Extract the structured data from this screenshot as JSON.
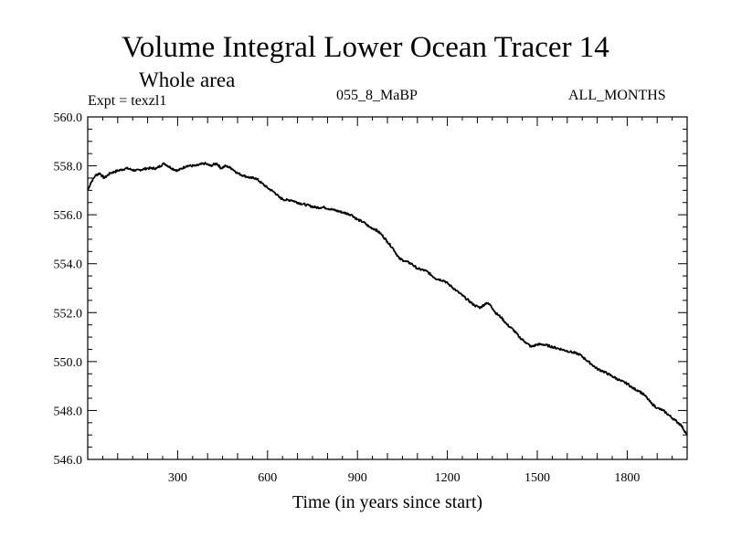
{
  "header": {
    "expt_label": "Expt = texzl1",
    "run_label": "055_8_MaBP",
    "months_label": "ALL_MONTHS"
  },
  "chart_data": {
    "type": "line",
    "title": "Volume Integral Lower Ocean Tracer 14",
    "subtitle": "Whole area",
    "xlabel": "Time (in years since start)",
    "ylabel": "",
    "xlim": [
      0,
      2000
    ],
    "ylim": [
      546.0,
      560.0
    ],
    "x_ticks": [
      300,
      600,
      900,
      1200,
      1500,
      1800
    ],
    "y_ticks": [
      546.0,
      548.0,
      550.0,
      552.0,
      554.0,
      556.0,
      558.0,
      560.0
    ],
    "y_tick_labels": [
      "546.0",
      "548.0",
      "550.0",
      "552.0",
      "554.0",
      "556.0",
      "558.0",
      "560.0"
    ],
    "grid": false,
    "series": [
      {
        "name": "Volume Integral Lower Ocean Tracer 14",
        "x": [
          0,
          10,
          25,
          40,
          55,
          75,
          100,
          130,
          160,
          200,
          230,
          255,
          280,
          300,
          330,
          360,
          390,
          410,
          430,
          445,
          460,
          480,
          500,
          520,
          545,
          560,
          580,
          600,
          625,
          640,
          660,
          680,
          700,
          730,
          760,
          790,
          820,
          850,
          880,
          900,
          920,
          940,
          960,
          980,
          1000,
          1020,
          1040,
          1060,
          1080,
          1100,
          1130,
          1160,
          1190,
          1210,
          1230,
          1260,
          1290,
          1310,
          1330,
          1345,
          1360,
          1380,
          1400,
          1420,
          1440,
          1460,
          1480,
          1500,
          1520,
          1550,
          1580,
          1610,
          1640,
          1660,
          1680,
          1700,
          1720,
          1750,
          1780,
          1800,
          1820,
          1840,
          1860,
          1880,
          1900,
          1920,
          1940,
          1960,
          1980,
          2000
        ],
        "values": [
          557.0,
          557.3,
          557.6,
          557.7,
          557.5,
          557.7,
          557.8,
          557.9,
          557.8,
          557.9,
          557.9,
          558.1,
          557.9,
          557.8,
          558.0,
          558.0,
          558.1,
          558.0,
          558.1,
          557.9,
          558.0,
          557.9,
          557.7,
          557.6,
          557.5,
          557.5,
          557.3,
          557.1,
          556.9,
          556.7,
          556.6,
          556.6,
          556.5,
          556.4,
          556.3,
          556.3,
          556.2,
          556.1,
          556.0,
          555.8,
          555.7,
          555.5,
          555.4,
          555.2,
          554.9,
          554.6,
          554.2,
          554.1,
          554.0,
          553.8,
          553.7,
          553.4,
          553.3,
          553.1,
          552.9,
          552.6,
          552.3,
          552.2,
          552.4,
          552.3,
          552.0,
          551.8,
          551.5,
          551.3,
          551.0,
          550.8,
          550.6,
          550.7,
          550.7,
          550.6,
          550.5,
          550.4,
          550.3,
          550.1,
          549.9,
          549.7,
          549.6,
          549.4,
          549.2,
          549.1,
          548.9,
          548.8,
          548.6,
          548.3,
          548.1,
          548.0,
          547.8,
          547.6,
          547.4,
          547.0
        ]
      }
    ]
  }
}
